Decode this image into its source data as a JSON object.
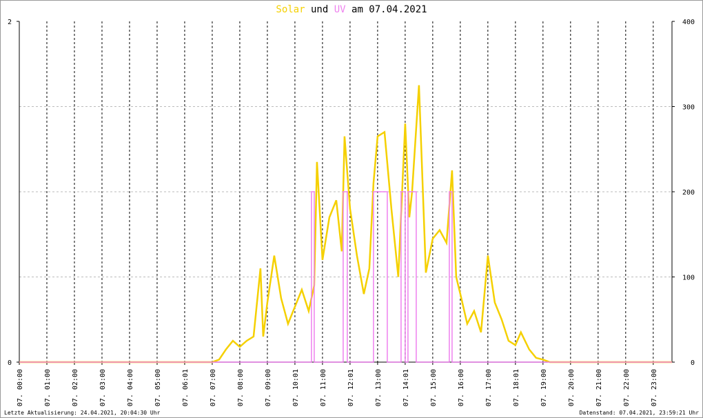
{
  "chart_data": {
    "type": "line",
    "title_mid": "und",
    "title_end": "am 07.04.2021",
    "footer_left": "Letzte Aktualisierung: 24.04.2021, 20:04:30 Uhr",
    "footer_right": "Datenstand: 07.04.2021, 23:59:21 Uhr",
    "xlim": [
      0,
      23.68
    ],
    "xticks": [
      {
        "value": 0,
        "label": "07. 00:00"
      },
      {
        "value": 1,
        "label": "07. 01:00"
      },
      {
        "value": 2,
        "label": "07. 02:00"
      },
      {
        "value": 3,
        "label": "07. 03:00"
      },
      {
        "value": 4,
        "label": "07. 04:00"
      },
      {
        "value": 5,
        "label": "07. 05:00"
      },
      {
        "value": 6,
        "label": "07. 06:01"
      },
      {
        "value": 7,
        "label": "07. 07:00"
      },
      {
        "value": 8,
        "label": "07. 08:00"
      },
      {
        "value": 9,
        "label": "07. 09:00"
      },
      {
        "value": 10,
        "label": "07. 10:01"
      },
      {
        "value": 11,
        "label": "07. 11:00"
      },
      {
        "value": 12,
        "label": "07. 12:01"
      },
      {
        "value": 13,
        "label": "07. 13:00"
      },
      {
        "value": 14,
        "label": "07. 14:01"
      },
      {
        "value": 15,
        "label": "07. 15:00"
      },
      {
        "value": 16,
        "label": "07. 16:00"
      },
      {
        "value": 17,
        "label": "07. 17:00"
      },
      {
        "value": 18,
        "label": "07. 18:01"
      },
      {
        "value": 19,
        "label": "07. 19:00"
      },
      {
        "value": 20,
        "label": "07. 20:00"
      },
      {
        "value": 21,
        "label": "07. 21:00"
      },
      {
        "value": 22,
        "label": "07. 22:00"
      },
      {
        "value": 23,
        "label": "07. 23:00"
      }
    ],
    "ylim": [
      0,
      2
    ],
    "yticks": [
      0,
      2
    ],
    "y2lim": [
      0,
      400
    ],
    "y2ticks": [
      0,
      100,
      200,
      300,
      400
    ],
    "grid": true,
    "series": [
      {
        "name": "Solar",
        "color": "#f5d000",
        "axis": "y2",
        "x": [
          0,
          7,
          7.25,
          7.5,
          7.75,
          8,
          8.25,
          8.5,
          8.75,
          8.85,
          9,
          9.25,
          9.5,
          9.75,
          10,
          10.25,
          10.5,
          10.7,
          10.8,
          11,
          11.25,
          11.5,
          11.7,
          11.8,
          12,
          12.25,
          12.5,
          12.7,
          12.85,
          13,
          13.25,
          13.5,
          13.75,
          14,
          14.15,
          14.25,
          14.5,
          14.75,
          15,
          15.25,
          15.5,
          15.7,
          15.85,
          16,
          16.25,
          16.5,
          16.75,
          17,
          17.25,
          17.5,
          17.75,
          18,
          18.2,
          18.5,
          18.75,
          19,
          19.25,
          23.68
        ],
        "values": [
          0,
          0,
          3,
          15,
          25,
          18,
          25,
          30,
          110,
          30,
          70,
          125,
          75,
          45,
          65,
          85,
          60,
          90,
          235,
          120,
          170,
          190,
          130,
          265,
          180,
          125,
          80,
          110,
          210,
          265,
          270,
          180,
          100,
          280,
          170,
          200,
          325,
          105,
          145,
          155,
          140,
          225,
          100,
          80,
          45,
          60,
          35,
          125,
          70,
          50,
          25,
          20,
          35,
          15,
          5,
          3,
          0,
          0
        ]
      },
      {
        "name": "UV",
        "color": "#ee82ee",
        "axis": "y",
        "x": [
          0,
          10.6,
          10.6,
          10.7,
          10.7,
          11.75,
          11.75,
          11.9,
          11.9,
          12.85,
          12.85,
          13.35,
          13.35,
          13.85,
          13.85,
          14.0,
          14.0,
          14.1,
          14.1,
          14.4,
          14.4,
          15.6,
          15.6,
          15.7,
          15.7,
          23.68
        ],
        "values": [
          0,
          0,
          1,
          1,
          0,
          0,
          1,
          1,
          0,
          0,
          1,
          1,
          0,
          0,
          1,
          1,
          0,
          0,
          1,
          1,
          0,
          0,
          1,
          1,
          0,
          0
        ]
      }
    ]
  }
}
